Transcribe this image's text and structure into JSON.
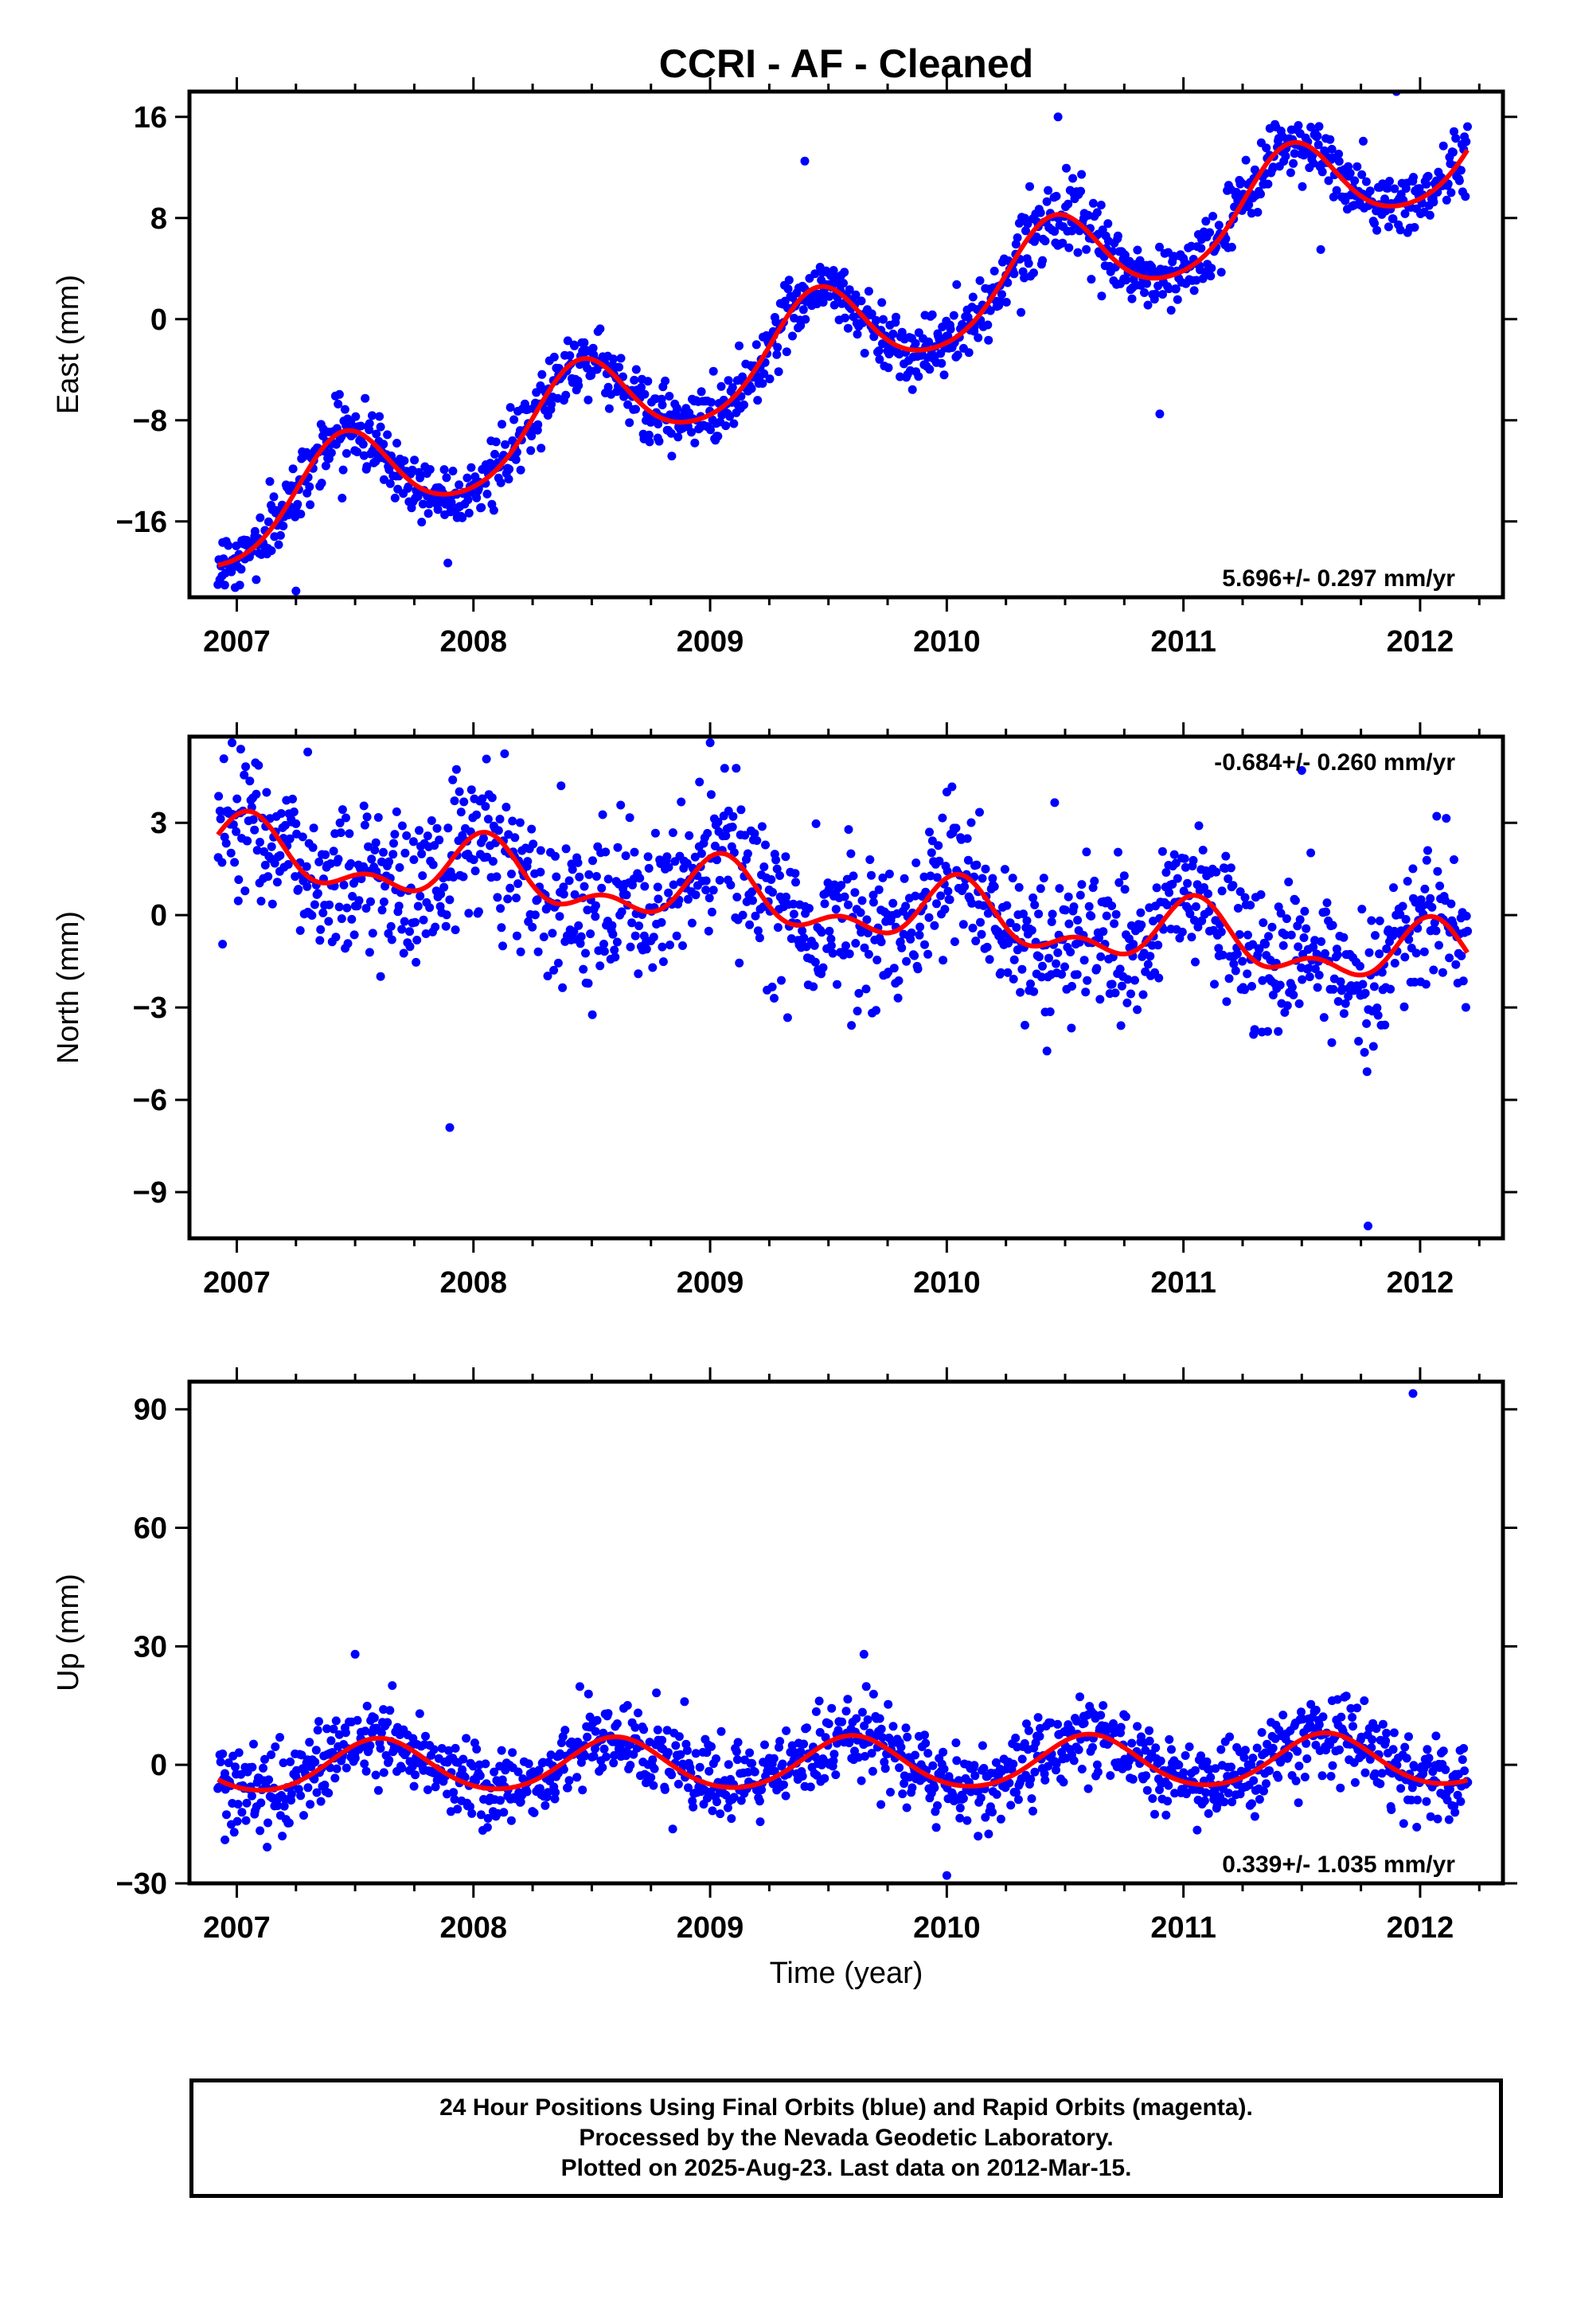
{
  "title": "CCRI  - AF - Cleaned",
  "xlabel": "Time (year)",
  "colors": {
    "points": "#0000ff",
    "fit": "#ff0000",
    "frame": "#000000"
  },
  "chart_data": [
    {
      "type": "scatter",
      "name": "east",
      "ylabel": "East (mm)",
      "xlim": [
        2006.8,
        2012.35
      ],
      "ylim": [
        -22,
        18
      ],
      "yticks": [
        -16,
        -8,
        0,
        8,
        16
      ],
      "ytick_labels": [
        "−16",
        "−8",
        "0",
        "8",
        "16"
      ],
      "xticks": [
        2007,
        2008,
        2009,
        2010,
        2011,
        2012
      ],
      "xtick_labels": [
        "2007",
        "2008",
        "2009",
        "2010",
        "2011",
        "2012"
      ],
      "rate_text": "5.696+/- 0.297 mm/yr",
      "rate_position": "bottom-right",
      "fit": {
        "rate_mm_per_yr": 5.696,
        "offset_at_2009_5": -1.5,
        "annual_amplitude": 3.8,
        "annual_peak": 2007.45,
        "semiannual_amplitude": 0.5
      },
      "noise_sd": 1.3,
      "outliers": [
        [
          2006.92,
          -21.0
        ],
        [
          2007.25,
          -21.5
        ],
        [
          2009.4,
          12.5
        ],
        [
          2010.47,
          16.0
        ],
        [
          2010.9,
          -7.5
        ],
        [
          2011.9,
          18.0
        ],
        [
          2011.58,
          5.5
        ]
      ]
    },
    {
      "type": "scatter",
      "name": "north",
      "ylabel": "North (mm)",
      "xlim": [
        2006.8,
        2012.35
      ],
      "ylim": [
        -10.5,
        5.8
      ],
      "yticks": [
        -9,
        -6,
        -3,
        0,
        3
      ],
      "ytick_labels": [
        "−9",
        "−6",
        "−3",
        "0",
        "3"
      ],
      "xticks": [
        2007,
        2008,
        2009,
        2010,
        2011,
        2012
      ],
      "xtick_labels": [
        "2007",
        "2008",
        "2009",
        "2010",
        "2011",
        "2012"
      ],
      "rate_text": "-0.684+/- 0.260 mm/yr",
      "rate_position": "top-right",
      "fit": {
        "rate_mm_per_yr": -0.684,
        "offset_at_2009_5": 0.3,
        "annual_amplitude": 0.85,
        "annual_peak": 2007.05,
        "semiannual_amplitude": 0.55
      },
      "noise_sd": 1.2,
      "outliers": [
        [
          2006.98,
          5.6
        ],
        [
          2009.0,
          5.6
        ],
        [
          2007.9,
          -6.9
        ],
        [
          2011.78,
          -10.1
        ],
        [
          2011.5,
          4.7
        ],
        [
          2007.3,
          5.3
        ],
        [
          2010.0,
          4.0
        ]
      ]
    },
    {
      "type": "scatter",
      "name": "up",
      "ylabel": "Up (mm)",
      "xlim": [
        2006.8,
        2012.35
      ],
      "ylim": [
        -30,
        97
      ],
      "yticks": [
        -30,
        0,
        30,
        60,
        90
      ],
      "ytick_labels": [
        "−30",
        "0",
        "30",
        "60",
        "90"
      ],
      "xticks": [
        2007,
        2008,
        2009,
        2010,
        2011,
        2012
      ],
      "xtick_labels": [
        "2007",
        "2008",
        "2009",
        "2010",
        "2011",
        "2012"
      ],
      "rate_text": "0.339+/- 1.035 mm/yr",
      "rate_position": "bottom-right",
      "fit": {
        "rate_mm_per_yr": 0.339,
        "offset_at_2009_5": 0.3,
        "annual_amplitude": 6.5,
        "annual_peak": 2007.6,
        "semiannual_amplitude": 0.6
      },
      "noise_sd": 5.0,
      "outliers": [
        [
          2011.97,
          94.0
        ],
        [
          2010.0,
          -28.0
        ],
        [
          2007.5,
          28.0
        ],
        [
          2009.65,
          28.0
        ],
        [
          2006.95,
          -19.0
        ]
      ]
    }
  ],
  "footer": {
    "line1": "24 Hour Positions Using Final Orbits (blue) and Rapid Orbits (magenta).",
    "line2": "Processed by the Nevada Geodetic Laboratory.",
    "line3": "Plotted on 2025-Aug-23. Last data on 2012-Mar-15."
  },
  "data_span": {
    "start": 2006.92,
    "end": 2012.2,
    "samples": 1300
  }
}
